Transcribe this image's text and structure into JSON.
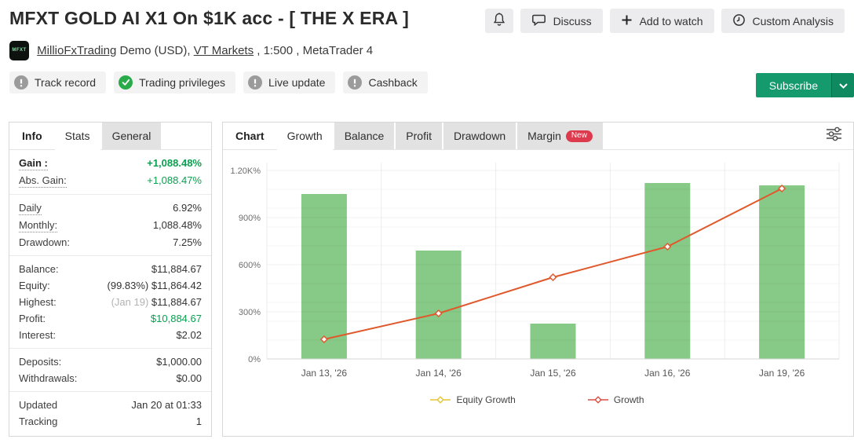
{
  "colors": {
    "green_text": "#0aa04f",
    "subscribe_green": "#149a6c",
    "subscribe_green_dark": "#0f8a60",
    "badge_ok_green": "#2aab4a",
    "new_badge_red": "#dd3a4e",
    "muted_gray": "#9b9b9b"
  },
  "header": {
    "title": "MFXT GOLD AI X1 On $1K acc - [ THE X ERA ]",
    "avatar_text": "MFXT",
    "account_name": "MillioFxTrading",
    "account_details_pre": "Demo (USD),",
    "broker": "VT Markets",
    "account_details_post": ", 1:500 , MetaTrader 4",
    "actions": {
      "discuss": "Discuss",
      "add_to_watch": "Add to watch",
      "custom_analysis": "Custom Analysis"
    },
    "badges": [
      {
        "label": "Track record",
        "status": "warn"
      },
      {
        "label": "Trading privileges",
        "status": "ok"
      },
      {
        "label": "Live update",
        "status": "warn"
      },
      {
        "label": "Cashback",
        "status": "warn"
      }
    ],
    "subscribe_label": "Subscribe"
  },
  "sidebar": {
    "section_label": "Info",
    "tabs": [
      {
        "label": "Stats",
        "active": true
      },
      {
        "label": "General",
        "active": false
      }
    ],
    "groups": [
      [
        {
          "label": "Gain :",
          "value": "+1,088.48%",
          "dotted": true,
          "bold": true,
          "green": true,
          "value_bold": true
        },
        {
          "label": "Abs. Gain:",
          "value": "+1,088.47%",
          "dotted": true,
          "green": true
        }
      ],
      [
        {
          "label": "Daily",
          "value": "6.92%",
          "dotted": true
        },
        {
          "label": "Monthly:",
          "value": "1,088.48%",
          "dotted": true
        },
        {
          "label": "Drawdown:",
          "value": "7.25%"
        }
      ],
      [
        {
          "label": "Balance:",
          "value": "$11,884.67"
        },
        {
          "label": "Equity:",
          "value": "$11,864.42",
          "prefix": "(99.83%) "
        },
        {
          "label": "Highest:",
          "value": "$11,884.67",
          "prefix": "(Jan 19) ",
          "prefix_muted": true
        },
        {
          "label": "Profit:",
          "value": "$10,884.67",
          "green": true
        },
        {
          "label": "Interest:",
          "value": "$2.02"
        }
      ],
      [
        {
          "label": "Deposits:",
          "value": "$1,000.00"
        },
        {
          "label": "Withdrawals:",
          "value": "$0.00"
        }
      ],
      [
        {
          "label": "Updated",
          "value": "Jan 20 at 01:33"
        },
        {
          "label": "Tracking",
          "value": "1"
        }
      ]
    ]
  },
  "chart_panel": {
    "section_label": "Chart",
    "tabs": [
      {
        "label": "Growth",
        "active": true
      },
      {
        "label": "Balance",
        "active": false
      },
      {
        "label": "Profit",
        "active": false
      },
      {
        "label": "Drawdown",
        "active": false
      },
      {
        "label": "Margin",
        "active": false,
        "badge": "New"
      }
    ]
  },
  "chart_data": {
    "type": "mixed",
    "categories": [
      "Jan 13, '26",
      "Jan 14, '26",
      "Jan 15, '26",
      "Jan 16, '26",
      "Jan 19, '26"
    ],
    "series": [
      {
        "key": "growth_columns",
        "type": "column",
        "color": "#87c987",
        "values": [
          1050,
          690,
          225,
          1120,
          1105
        ]
      },
      {
        "key": "growth_line",
        "name": "Growth",
        "type": "line",
        "color": "#e0592c",
        "values": [
          125,
          290,
          520,
          715,
          1085
        ]
      }
    ],
    "legend": [
      {
        "label": "Equity Growth",
        "marker_color": "#e5c435"
      },
      {
        "label": "Growth",
        "marker_color": "#da4f42"
      }
    ],
    "yticks": [
      {
        "v": 0,
        "label": "0%"
      },
      {
        "v": 300,
        "label": "300%"
      },
      {
        "v": 600,
        "label": "600%"
      },
      {
        "v": 900,
        "label": "900%"
      },
      {
        "v": 1200,
        "label": "1.20K%"
      }
    ],
    "ylim": [
      0,
      1250
    ],
    "grid": {
      "minor_step": 120,
      "vertical_separators": true
    },
    "legend_position": "bottom"
  }
}
